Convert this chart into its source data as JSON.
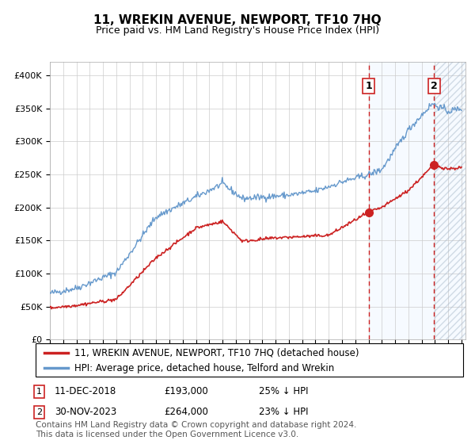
{
  "title": "11, WREKIN AVENUE, NEWPORT, TF10 7HQ",
  "subtitle": "Price paid vs. HM Land Registry's House Price Index (HPI)",
  "xlim_left": 1995,
  "xlim_right": 2026.3,
  "ylim": [
    0,
    420000
  ],
  "yticks": [
    0,
    50000,
    100000,
    150000,
    200000,
    250000,
    300000,
    350000,
    400000
  ],
  "ytick_labels": [
    "£0",
    "£50K",
    "£100K",
    "£150K",
    "£200K",
    "£250K",
    "£300K",
    "£350K",
    "£400K"
  ],
  "sale1_date": "11-DEC-2018",
  "sale1_price": 193000,
  "sale1_label": "25% ↓ HPI",
  "sale1_x": 2019.0,
  "sale2_date": "30-NOV-2023",
  "sale2_price": 264000,
  "sale2_label": "23% ↓ HPI",
  "sale2_x": 2023.92,
  "red_line_color": "#cc2222",
  "blue_line_color": "#6699cc",
  "marker_color": "#cc2222",
  "vline_color": "#cc2222",
  "shade_color": "#ddeeff",
  "legend_label1": "11, WREKIN AVENUE, NEWPORT, TF10 7HQ (detached house)",
  "legend_label2": "HPI: Average price, detached house, Telford and Wrekin",
  "footer": "Contains HM Land Registry data © Crown copyright and database right 2024.\nThis data is licensed under the Open Government Licence v3.0.",
  "background_color": "#ffffff",
  "grid_color": "#cccccc",
  "title_fontsize": 11,
  "subtitle_fontsize": 9,
  "tick_fontsize": 8,
  "legend_fontsize": 8.5,
  "footer_fontsize": 7.5
}
